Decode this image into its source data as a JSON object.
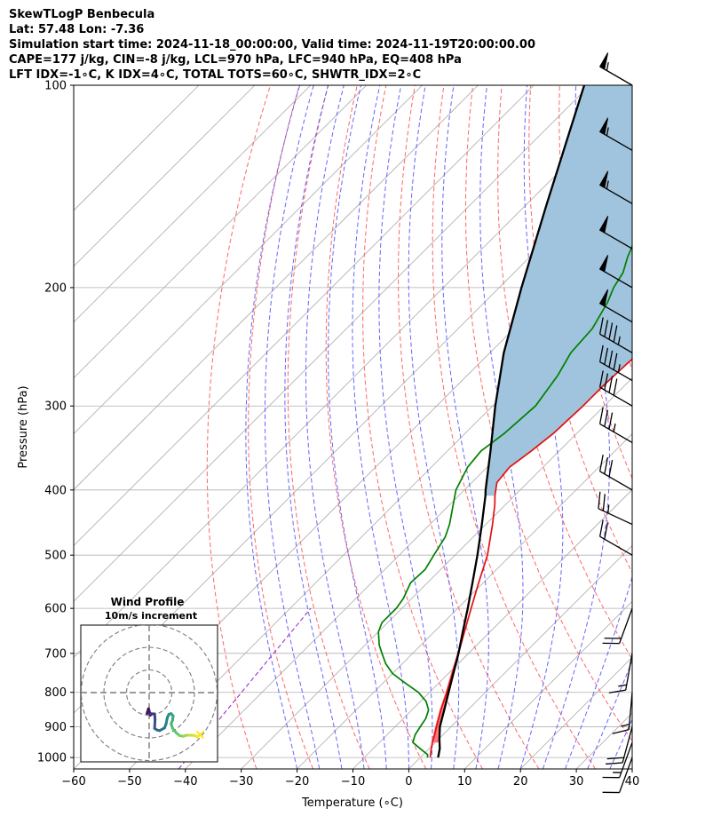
{
  "header": {
    "line1": "SkewTLogP Benbecula",
    "line2": "Lat: 57.48   Lon: -7.36",
    "line3": "Simulation start time: 2024-11-18_00:00:00, Valid time: 2024-11-19T20:00:00.00",
    "line4": "CAPE=177 j/kg, CIN=-8 j/kg, LCL=970 hPa, LFC=940 hPa, EQ=408 hPa",
    "line5": "LFT IDX=-1∘C, K IDX=4∘C, TOTAL TOTS=60∘C, SHWTR_IDX=2∘C"
  },
  "chart_data": [
    {
      "type": "line",
      "chart": "skew-t log-p",
      "xlabel": "Temperature (∘C)",
      "ylabel": "Pressure (hPa)",
      "xlim": [
        -60,
        40
      ],
      "ylim": [
        1040,
        100
      ],
      "yscale": "log",
      "xticks": [
        -60,
        -50,
        -40,
        -30,
        -20,
        -10,
        0,
        10,
        20,
        30,
        40
      ],
      "yticks": [
        100,
        200,
        300,
        400,
        500,
        600,
        700,
        800,
        900,
        1000
      ],
      "grid": true,
      "colors": {
        "temperature": "#e41010",
        "dewpoint": "#008000",
        "parcel": "#000000",
        "cape_fill": "#a0c4dd",
        "cape_highlight": "#ff6a6a",
        "dry_adiabats": "#ff6666",
        "moist_adiabats": "#4a4aff",
        "mixing_ratio": "#9a30d8",
        "isotherms": "#aaaaaa"
      },
      "series": [
        {
          "key": "temperature",
          "points": [
            [
              1000,
              1.8
            ],
            [
              975,
              0.6
            ],
            [
              950,
              -0.5
            ],
            [
              925,
              -1.5
            ],
            [
              900,
              -2.6
            ],
            [
              850,
              -4.8
            ],
            [
              800,
              -6.9
            ],
            [
              750,
              -9.3
            ],
            [
              700,
              -11.8
            ],
            [
              650,
              -14.6
            ],
            [
              600,
              -17.6
            ],
            [
              550,
              -20.8
            ],
            [
              500,
              -24.2
            ],
            [
              450,
              -28.8
            ],
            [
              420,
              -32
            ],
            [
              408,
              -33.5
            ],
            [
              390,
              -35.5
            ],
            [
              370,
              -36
            ],
            [
              350,
              -35
            ],
            [
              330,
              -34.2
            ],
            [
              300,
              -33.8
            ],
            [
              280,
              -33.8
            ],
            [
              260,
              -33.5
            ],
            [
              250,
              -33.2
            ],
            [
              230,
              -34.5
            ],
            [
              200,
              -37
            ],
            [
              180,
              -40.5
            ],
            [
              160,
              -44.5
            ],
            [
              150,
              -47
            ],
            [
              140,
              -50
            ],
            [
              130,
              -52
            ],
            [
              120,
              -55
            ],
            [
              110,
              -58
            ],
            [
              100,
              -62
            ]
          ]
        },
        {
          "key": "dewpoint",
          "points": [
            [
              1000,
              1.3
            ],
            [
              990,
              0.8
            ],
            [
              975,
              -1
            ],
            [
              950,
              -4
            ],
            [
              925,
              -5
            ],
            [
              900,
              -5.5
            ],
            [
              875,
              -6
            ],
            [
              850,
              -7
            ],
            [
              825,
              -9
            ],
            [
              800,
              -12
            ],
            [
              775,
              -16
            ],
            [
              750,
              -20
            ],
            [
              725,
              -23
            ],
            [
              700,
              -25.5
            ],
            [
              680,
              -27.5
            ],
            [
              650,
              -30
            ],
            [
              630,
              -31
            ],
            [
              600,
              -31
            ],
            [
              580,
              -31.5
            ],
            [
              550,
              -33
            ],
            [
              525,
              -32.8
            ],
            [
              500,
              -33.8
            ],
            [
              470,
              -35
            ],
            [
              450,
              -36.5
            ],
            [
              400,
              -41.5
            ],
            [
              370,
              -43.5
            ],
            [
              350,
              -44
            ],
            [
              330,
              -43
            ],
            [
              300,
              -42.3
            ],
            [
              270,
              -43.8
            ],
            [
              250,
              -45.5
            ],
            [
              230,
              -46
            ],
            [
              210,
              -48
            ],
            [
              200,
              -49.5
            ],
            [
              190,
              -50.5
            ],
            [
              180,
              -52.5
            ],
            [
              160,
              -56
            ],
            [
              140,
              -59
            ],
            [
              120,
              -62.5
            ],
            [
              100,
              -66.5
            ]
          ]
        },
        {
          "key": "parcel",
          "points": [
            [
              1000,
              3.2
            ],
            [
              970,
              1.9
            ],
            [
              940,
              0.2
            ],
            [
              900,
              -2
            ],
            [
              850,
              -4.2
            ],
            [
              800,
              -6.6
            ],
            [
              750,
              -9.1
            ],
            [
              700,
              -11.8
            ],
            [
              650,
              -14.9
            ],
            [
              600,
              -18.2
            ],
            [
              550,
              -21.9
            ],
            [
              500,
              -26
            ],
            [
              450,
              -30.7
            ],
            [
              408,
              -35.2
            ],
            [
              400,
              -36.2
            ],
            [
              350,
              -42.3
            ],
            [
              300,
              -49.5
            ],
            [
              250,
              -57.5
            ],
            [
              200,
              -66
            ],
            [
              150,
              -76.5
            ],
            [
              100,
              -91
            ]
          ]
        }
      ],
      "cape_region": {
        "from_hpa": 408,
        "to_hpa": 100
      },
      "wind_barbs": [
        {
          "pressure": 100,
          "speed_kt": 55,
          "direction_deg": 300
        },
        {
          "pressure": 125,
          "speed_kt": 55,
          "direction_deg": 300
        },
        {
          "pressure": 150,
          "speed_kt": 55,
          "direction_deg": 300
        },
        {
          "pressure": 175,
          "speed_kt": 50,
          "direction_deg": 300
        },
        {
          "pressure": 200,
          "speed_kt": 50,
          "direction_deg": 300
        },
        {
          "pressure": 225,
          "speed_kt": 50,
          "direction_deg": 300
        },
        {
          "pressure": 250,
          "speed_kt": 45,
          "direction_deg": 300
        },
        {
          "pressure": 275,
          "speed_kt": 45,
          "direction_deg": 300
        },
        {
          "pressure": 300,
          "speed_kt": 40,
          "direction_deg": 300
        },
        {
          "pressure": 340,
          "speed_kt": 35,
          "direction_deg": 300
        },
        {
          "pressure": 400,
          "speed_kt": 30,
          "direction_deg": 300
        },
        {
          "pressure": 450,
          "speed_kt": 25,
          "direction_deg": 295
        },
        {
          "pressure": 500,
          "speed_kt": 20,
          "direction_deg": 300
        },
        {
          "pressure": 600,
          "speed_kt": 20,
          "direction_deg": 200
        },
        {
          "pressure": 700,
          "speed_kt": 15,
          "direction_deg": 190
        },
        {
          "pressure": 800,
          "speed_kt": 15,
          "direction_deg": 185
        },
        {
          "pressure": 900,
          "speed_kt": 20,
          "direction_deg": 195
        },
        {
          "pressure": 950,
          "speed_kt": 15,
          "direction_deg": 200
        },
        {
          "pressure": 1000,
          "speed_kt": 10,
          "direction_deg": 200
        }
      ]
    },
    {
      "type": "line",
      "chart": "hodograph",
      "title": "Wind Profile",
      "subtitle": "10m/s increment",
      "ring_spacing_ms": 10,
      "rings": 3,
      "path_uv": [
        [
          -0.3,
          -7.1
        ],
        [
          -0.9,
          -9.2
        ],
        [
          -0.1,
          -7.7
        ],
        [
          0.5,
          -10
        ],
        [
          0.6,
          -9.3
        ],
        [
          2.4,
          -9.4
        ],
        [
          2.6,
          -11.9
        ],
        [
          2.4,
          -15.8
        ],
        [
          3.4,
          -16.5
        ],
        [
          4.6,
          -16.8
        ],
        [
          6.8,
          -15.6
        ],
        [
          7.5,
          -13.7
        ],
        [
          8,
          -11.1
        ],
        [
          8.7,
          -9.6
        ],
        [
          9.7,
          -9.3
        ],
        [
          10.6,
          -10.3
        ],
        [
          10.3,
          -12.3
        ],
        [
          9.7,
          -13.7
        ],
        [
          10.3,
          -15.7
        ],
        [
          12.1,
          -17.9
        ],
        [
          13.4,
          -19
        ],
        [
          15.1,
          -19.3
        ],
        [
          16.5,
          -18.8
        ],
        [
          17.8,
          -18.8
        ],
        [
          19.9,
          -18.9
        ],
        [
          21.4,
          -19.5
        ],
        [
          22.5,
          -18.6
        ]
      ],
      "colormap": [
        "#440154",
        "#3b528b",
        "#21908d",
        "#5dc963",
        "#fde725"
      ]
    }
  ]
}
